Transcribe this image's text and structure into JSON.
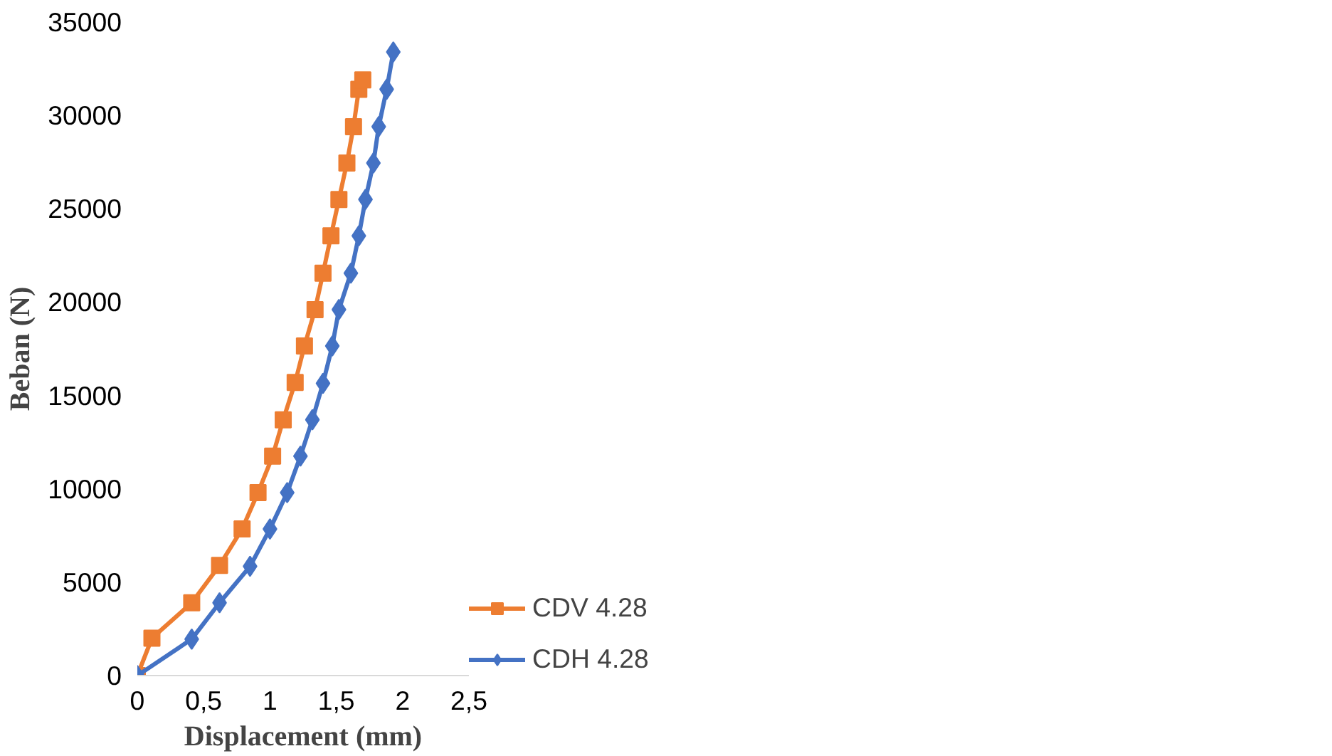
{
  "chart_data": {
    "type": "line",
    "xlabel": "Displacement (mm)",
    "ylabel": "Beban (N)",
    "xlim": [
      0,
      2.5
    ],
    "ylim": [
      0,
      35000
    ],
    "xticks": [
      0,
      {
        "value": 0.5,
        "label": "0,5"
      },
      1,
      {
        "value": 1.5,
        "label": "1,5"
      },
      2,
      {
        "value": 2.5,
        "label": "2,5"
      }
    ],
    "yticks": [
      0,
      5000,
      10000,
      15000,
      20000,
      25000,
      30000,
      35000
    ],
    "grid": false,
    "legend": "right",
    "line_style": "solid",
    "series": [
      {
        "name": "CDV 4.28",
        "color": "#ed7d31",
        "marker": "square",
        "x": [
          0,
          0.11,
          0.41,
          0.62,
          0.79,
          0.91,
          1.02,
          1.1,
          1.19,
          1.26,
          1.34,
          1.4,
          1.46,
          1.52,
          1.58,
          1.63,
          1.67,
          1.7
        ],
        "values": [
          0,
          2000,
          3900,
          5900,
          7850,
          9800,
          11750,
          13700,
          15700,
          17650,
          19600,
          21550,
          23550,
          25500,
          27450,
          29400,
          31400,
          31900
        ]
      },
      {
        "name": "CDH 4.28",
        "color": "#4472c4",
        "marker": "diamond",
        "x": [
          0,
          0.41,
          0.62,
          0.85,
          1.0,
          1.13,
          1.23,
          1.32,
          1.4,
          1.47,
          1.52,
          1.61,
          1.67,
          1.72,
          1.78,
          1.82,
          1.88,
          1.93
        ],
        "values": [
          0,
          1950,
          3900,
          5850,
          7850,
          9800,
          11750,
          13700,
          15650,
          17650,
          19600,
          21550,
          23550,
          25500,
          27450,
          29400,
          31400,
          33400
        ]
      }
    ]
  }
}
